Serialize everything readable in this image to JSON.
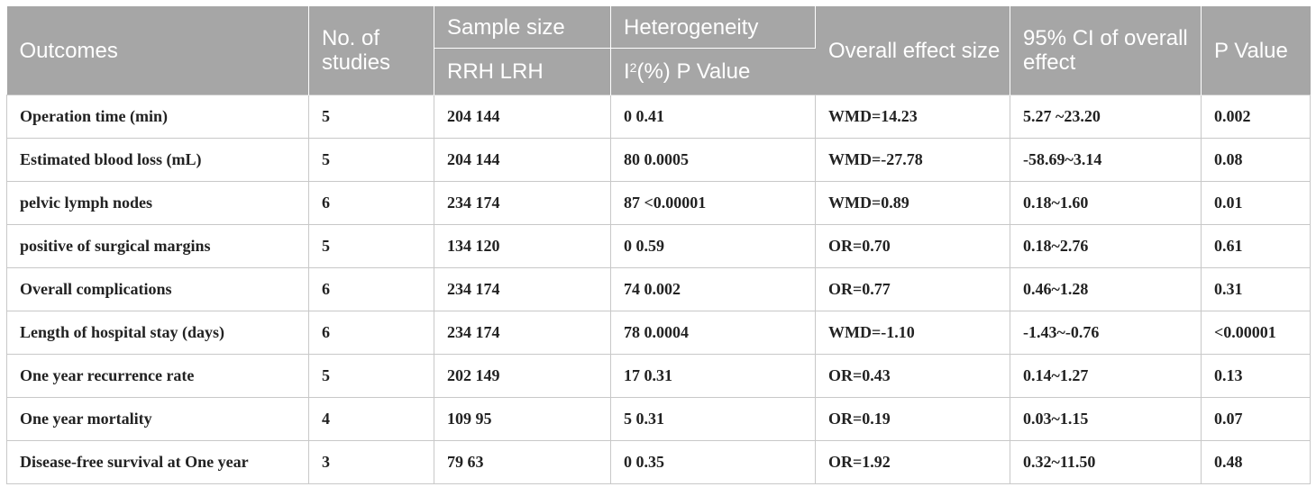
{
  "header": {
    "outcomes": "Outcomes",
    "studies": "No. of studies",
    "sample_size": "Sample size",
    "sample_sub": "RRH LRH",
    "heterogeneity": "Heterogeneity",
    "het_sub_prefix": "I",
    "het_sub_sup": "2",
    "het_sub_suffix": "(%) P Value",
    "overall_effect": "Overall effect size",
    "ci": "95% CI of overall effect",
    "p_value": "P Value"
  },
  "rows": [
    {
      "outcome": "Operation time (min)",
      "studies": "5",
      "sample": "204 144",
      "het": "0 0.41",
      "effect": "WMD=14.23",
      "ci": "5.27 ~23.20",
      "p": "0.002"
    },
    {
      "outcome": "Estimated blood loss (mL)",
      "studies": "5",
      "sample": "204 144",
      "het": "80 0.0005",
      "effect": "WMD=-27.78",
      "ci": "-58.69~3.14",
      "p": "0.08"
    },
    {
      "outcome": "pelvic lymph nodes",
      "studies": "6",
      "sample": "234 174",
      "het": "87 <0.00001",
      "effect": "WMD=0.89",
      "ci": "0.18~1.60",
      "p": "0.01"
    },
    {
      "outcome": "positive of surgical margins",
      "studies": "5",
      "sample": "134 120",
      "het": "0 0.59",
      "effect": "OR=0.70",
      "ci": "0.18~2.76",
      "p": "0.61"
    },
    {
      "outcome": "Overall complications",
      "studies": "6",
      "sample": "234 174",
      "het": "74 0.002",
      "effect": "OR=0.77",
      "ci": "0.46~1.28",
      "p": "0.31"
    },
    {
      "outcome": "Length of hospital stay (days)",
      "studies": "6",
      "sample": "234 174",
      "het": "78 0.0004",
      "effect": "WMD=-1.10",
      "ci": "-1.43~-0.76",
      "p": "<0.00001"
    },
    {
      "outcome": "One year recurrence rate",
      "studies": "5",
      "sample": "202 149",
      "het": "17 0.31",
      "effect": "OR=0.43",
      "ci": "0.14~1.27",
      "p": "0.13"
    },
    {
      "outcome": "One year mortality",
      "studies": "4",
      "sample": "109 95",
      "het": "5 0.31",
      "effect": "OR=0.19",
      "ci": "0.03~1.15",
      "p": "0.07"
    },
    {
      "outcome": "Disease-free survival at One year",
      "studies": "3",
      "sample": "79 63",
      "het": "0 0.35",
      "effect": "OR=1.92",
      "ci": "0.32~11.50",
      "p": "0.48"
    }
  ],
  "colors": {
    "header_bg": "#a6a6a6",
    "header_text": "#ffffff",
    "grid": "#c8c8c8"
  }
}
